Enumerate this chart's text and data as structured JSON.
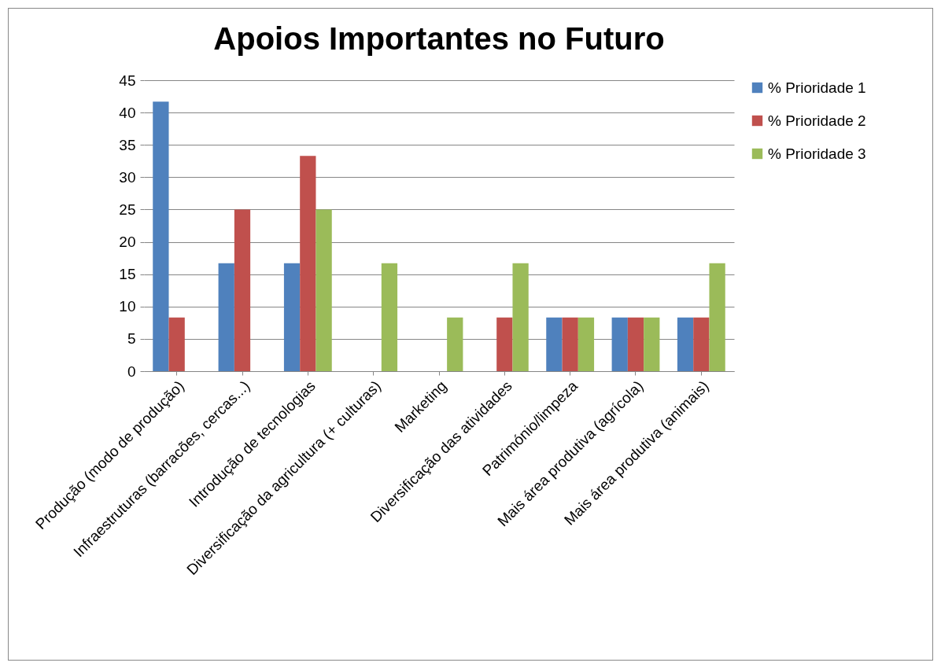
{
  "chart_data": {
    "type": "bar",
    "title": "Apoios Importantes no Futuro",
    "categories": [
      "Produção (modo de produção)",
      "Infraestruturas (barracões, cercas...)",
      "Introdução de tecnologias",
      "Diversificação da agricultura (+ culturas)",
      "Marketing",
      "Diversificação das atividades",
      "Património/limpeza",
      "Mais área produtiva (agrícola)",
      "Mais área produtiva (animais)"
    ],
    "series": [
      {
        "name": "% Prioridade 1",
        "color": "#4f81bd",
        "values": [
          41.7,
          16.7,
          16.7,
          0,
          0,
          0,
          8.3,
          8.3,
          8.3
        ]
      },
      {
        "name": "% Prioridade 2",
        "color": "#c0504d",
        "values": [
          8.3,
          25,
          33.3,
          0,
          0,
          8.3,
          8.3,
          8.3,
          8.3
        ]
      },
      {
        "name": "% Prioridade 3",
        "color": "#9bbb59",
        "values": [
          0,
          0,
          25,
          16.7,
          8.3,
          16.7,
          8.3,
          8.3,
          16.7
        ]
      }
    ],
    "ylim": [
      0,
      45
    ],
    "yticks": [
      0,
      5,
      10,
      15,
      20,
      25,
      30,
      35,
      40,
      45
    ],
    "grid": "y",
    "legend": "right"
  }
}
